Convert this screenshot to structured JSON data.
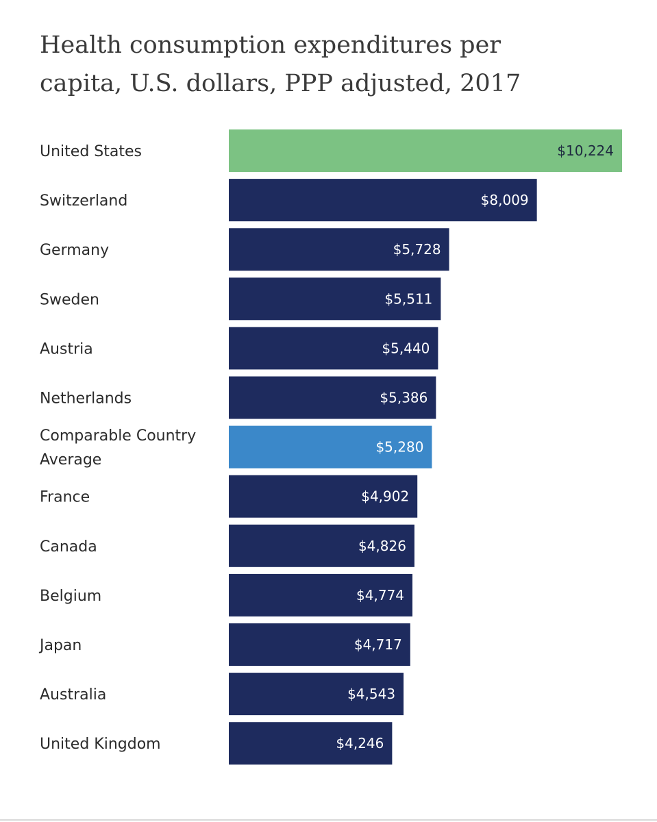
{
  "chart_data": {
    "type": "bar",
    "orientation": "horizontal",
    "title": "Health consumption expenditures per capita, U.S. dollars, PPP adjusted, 2017",
    "xlabel": "",
    "ylabel": "",
    "xlim": [
      0,
      10224
    ],
    "grid": false,
    "legend": "none",
    "categories": [
      {
        "lines": [
          "United States"
        ],
        "value": 10224,
        "value_label": "$10,224",
        "color": "#7cc283"
      },
      {
        "lines": [
          "Switzerland"
        ],
        "value": 8009,
        "value_label": "$8,009",
        "color": "#1e2b5e"
      },
      {
        "lines": [
          "Germany"
        ],
        "value": 5728,
        "value_label": "$5,728",
        "color": "#1e2b5e"
      },
      {
        "lines": [
          "Sweden"
        ],
        "value": 5511,
        "value_label": "$5,511",
        "color": "#1e2b5e"
      },
      {
        "lines": [
          "Austria"
        ],
        "value": 5440,
        "value_label": "$5,440",
        "color": "#1e2b5e"
      },
      {
        "lines": [
          "Netherlands"
        ],
        "value": 5386,
        "value_label": "$5,386",
        "color": "#1e2b5e"
      },
      {
        "lines": [
          "Comparable Country",
          "Average"
        ],
        "value": 5280,
        "value_label": "$5,280",
        "color": "#3b88c9"
      },
      {
        "lines": [
          "France"
        ],
        "value": 4902,
        "value_label": "$4,902",
        "color": "#1e2b5e"
      },
      {
        "lines": [
          "Canada"
        ],
        "value": 4826,
        "value_label": "$4,826",
        "color": "#1e2b5e"
      },
      {
        "lines": [
          "Belgium"
        ],
        "value": 4774,
        "value_label": "$4,774",
        "color": "#1e2b5e"
      },
      {
        "lines": [
          "Japan"
        ],
        "value": 4717,
        "value_label": "$4,717",
        "color": "#1e2b5e"
      },
      {
        "lines": [
          "Australia"
        ],
        "value": 4543,
        "value_label": "$4,543",
        "color": "#1e2b5e"
      },
      {
        "lines": [
          "United Kingdom"
        ],
        "value": 4246,
        "value_label": "$4,246",
        "color": "#1e2b5e"
      }
    ]
  }
}
